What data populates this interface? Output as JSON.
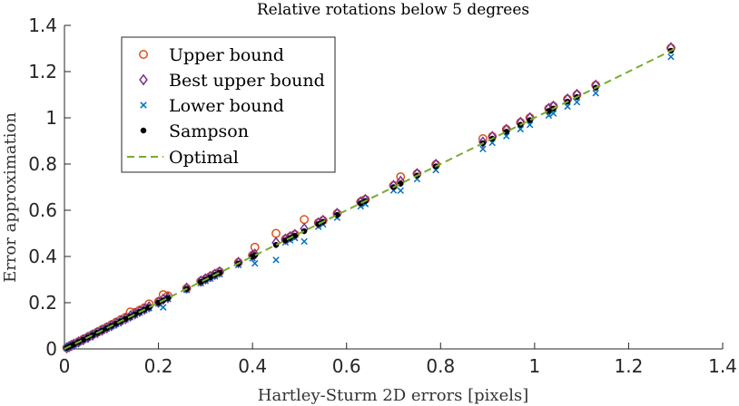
{
  "chart_data": {
    "type": "scatter",
    "title": "Relative rotations below 5 degrees",
    "xlabel": "Hartley-Sturm 2D errors [pixels]",
    "ylabel": "Error approximation",
    "xlim": [
      0,
      1.4
    ],
    "ylim": [
      0,
      1.4
    ],
    "xticks": [
      0,
      0.2,
      0.4,
      0.6,
      0.8,
      1,
      1.2,
      1.4
    ],
    "yticks": [
      0,
      0.2,
      0.4,
      0.6,
      0.8,
      1,
      1.2,
      1.4
    ],
    "xtick_labels": [
      "0",
      "0.2",
      "0.4",
      "0.6",
      "0.8",
      "1",
      "1.2",
      "1.4"
    ],
    "ytick_labels": [
      "0",
      "0.2",
      "0.4",
      "0.6",
      "0.8",
      "1",
      "1.2",
      "1.4"
    ],
    "grid": false,
    "legend_position": "top-left",
    "legend": [
      "Upper bound",
      "Best upper bound",
      "Lower bound",
      "Sampson",
      "Optimal"
    ],
    "colors": {
      "upper": "#D95319",
      "best": "#7E2F8E",
      "lower": "#0072BD",
      "sampson": "#000000",
      "optimal": "#77AC30"
    },
    "x": [
      0.005,
      0.01,
      0.015,
      0.02,
      0.03,
      0.04,
      0.05,
      0.06,
      0.07,
      0.08,
      0.09,
      0.1,
      0.11,
      0.12,
      0.13,
      0.14,
      0.15,
      0.16,
      0.17,
      0.18,
      0.2,
      0.21,
      0.22,
      0.26,
      0.29,
      0.3,
      0.31,
      0.32,
      0.33,
      0.37,
      0.4,
      0.405,
      0.45,
      0.47,
      0.48,
      0.49,
      0.51,
      0.54,
      0.55,
      0.58,
      0.63,
      0.64,
      0.7,
      0.715,
      0.75,
      0.79,
      0.89,
      0.91,
      0.94,
      0.97,
      0.99,
      1.03,
      1.04,
      1.07,
      1.09,
      1.13,
      1.29
    ],
    "series": [
      {
        "name": "Upper bound",
        "marker": "circle",
        "values": [
          0.005,
          0.01,
          0.016,
          0.021,
          0.031,
          0.042,
          0.052,
          0.063,
          0.073,
          0.084,
          0.094,
          0.105,
          0.116,
          0.127,
          0.137,
          0.16,
          0.158,
          0.168,
          0.178,
          0.195,
          0.205,
          0.235,
          0.23,
          0.262,
          0.293,
          0.303,
          0.313,
          0.323,
          0.334,
          0.374,
          0.405,
          0.44,
          0.5,
          0.475,
          0.485,
          0.495,
          0.56,
          0.546,
          0.556,
          0.586,
          0.636,
          0.647,
          0.707,
          0.745,
          0.758,
          0.798,
          0.91,
          0.919,
          0.95,
          0.98,
          1.0,
          1.04,
          1.05,
          1.081,
          1.1,
          1.141,
          1.302
        ]
      },
      {
        "name": "Best upper bound",
        "marker": "diamond",
        "values": [
          0.005,
          0.01,
          0.015,
          0.02,
          0.03,
          0.04,
          0.05,
          0.06,
          0.071,
          0.081,
          0.091,
          0.101,
          0.111,
          0.121,
          0.131,
          0.142,
          0.152,
          0.162,
          0.172,
          0.182,
          0.202,
          0.215,
          0.222,
          0.263,
          0.293,
          0.303,
          0.313,
          0.323,
          0.333,
          0.374,
          0.404,
          0.41,
          0.46,
          0.475,
          0.485,
          0.495,
          0.52,
          0.545,
          0.556,
          0.586,
          0.636,
          0.646,
          0.707,
          0.725,
          0.758,
          0.798,
          0.895,
          0.919,
          0.949,
          0.98,
          1.0,
          1.04,
          1.05,
          1.081,
          1.101,
          1.141,
          1.303
        ]
      },
      {
        "name": "Lower bound",
        "marker": "x",
        "values": [
          0.005,
          0.01,
          0.015,
          0.02,
          0.03,
          0.039,
          0.049,
          0.059,
          0.069,
          0.078,
          0.088,
          0.098,
          0.108,
          0.118,
          0.127,
          0.137,
          0.147,
          0.157,
          0.167,
          0.176,
          0.196,
          0.18,
          0.216,
          0.255,
          0.284,
          0.294,
          0.304,
          0.314,
          0.323,
          0.363,
          0.392,
          0.37,
          0.385,
          0.461,
          0.47,
          0.48,
          0.465,
          0.529,
          0.539,
          0.568,
          0.617,
          0.627,
          0.686,
          0.685,
          0.735,
          0.774,
          0.865,
          0.892,
          0.921,
          0.951,
          0.97,
          1.01,
          1.019,
          1.049,
          1.068,
          1.107,
          1.264
        ]
      },
      {
        "name": "Sampson",
        "marker": "dot",
        "values": [
          0.005,
          0.01,
          0.015,
          0.02,
          0.03,
          0.04,
          0.05,
          0.06,
          0.07,
          0.08,
          0.09,
          0.1,
          0.11,
          0.12,
          0.13,
          0.14,
          0.15,
          0.16,
          0.17,
          0.18,
          0.2,
          0.21,
          0.22,
          0.26,
          0.29,
          0.3,
          0.31,
          0.32,
          0.33,
          0.37,
          0.4,
          0.405,
          0.45,
          0.47,
          0.48,
          0.49,
          0.51,
          0.54,
          0.55,
          0.58,
          0.63,
          0.64,
          0.7,
          0.715,
          0.75,
          0.79,
          0.89,
          0.91,
          0.94,
          0.97,
          0.99,
          1.03,
          1.04,
          1.07,
          1.09,
          1.13,
          1.29
        ]
      },
      {
        "name": "Optimal",
        "marker": "dashed-line",
        "x": [
          0,
          1.3
        ],
        "values": [
          0,
          1.3
        ]
      }
    ]
  }
}
